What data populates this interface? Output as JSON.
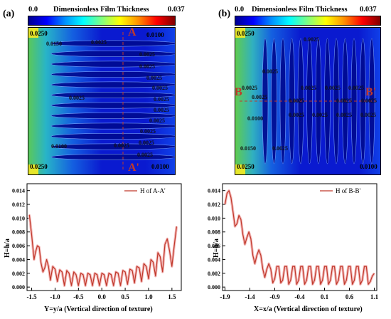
{
  "panels": [
    {
      "label": "(a)",
      "colorbar": {
        "min": "0.0",
        "title": "Dimensionless Film Thickness",
        "max": "0.037"
      },
      "contour_labels": [
        "0.0250",
        "0.0150",
        "0.0025",
        "0.0100",
        "0.0025",
        "0.0025",
        "0.0025",
        "0.0025",
        "0.0025",
        "0.0025",
        "0.0025",
        "0.0025",
        "0.0025",
        "0.0025",
        "0.0025",
        "0.0100",
        "0.0025",
        "0.0250",
        "0.0100"
      ],
      "section_marks": [
        "A",
        "A'"
      ]
    },
    {
      "label": "(b)",
      "colorbar": {
        "min": "0.0",
        "title": "Dimensionless Film Thickness",
        "max": "0.037"
      },
      "contour_labels": [
        "0.0250",
        "0.0025",
        "0.0025",
        "0.0025",
        "0.0025",
        "0.0025",
        "0.0025",
        "0.0100",
        "0.0025",
        "0.0025",
        "0.0025",
        "0.0025",
        "0.0025",
        "0.0150",
        "0.0025",
        "0.0250",
        "0.0100",
        "0.0025",
        "0.0025",
        "0.0025"
      ],
      "section_marks": [
        "B",
        "B'"
      ]
    }
  ],
  "chart_data": [
    {
      "type": "line",
      "title": "",
      "xlabel": "Y=y/a (Vertical direction of texture)",
      "ylabel": "H=h/a",
      "xlim": [
        -1.6,
        1.7
      ],
      "ylim": [
        -0.0005,
        0.015
      ],
      "xticks": [
        "-1.5",
        "-1.0",
        "-0.5",
        "0.0",
        "0.5",
        "1.0",
        "1.5"
      ],
      "xtick_values": [
        -1.5,
        -1.0,
        -0.5,
        0.0,
        0.5,
        1.0,
        1.5
      ],
      "yticks": [
        "0.000",
        "0.002",
        "0.004",
        "0.006",
        "0.008",
        "0.010",
        "0.012",
        "0.014"
      ],
      "ytick_values": [
        0,
        0.002,
        0.004,
        0.006,
        0.008,
        0.01,
        0.012,
        0.014
      ],
      "legend": "top-right",
      "series": [
        {
          "name": "H of A-A'",
          "color": "#c0392b",
          "x": [
            -1.55,
            -1.5,
            -1.45,
            -1.42,
            -1.38,
            -1.34,
            -1.3,
            -1.26,
            -1.22,
            -1.18,
            -1.14,
            -1.1,
            -1.05,
            -1.0,
            -0.95,
            -0.9,
            -0.85,
            -0.8,
            -0.75,
            -0.7,
            -0.65,
            -0.6,
            -0.55,
            -0.5,
            -0.45,
            -0.4,
            -0.35,
            -0.3,
            -0.25,
            -0.2,
            -0.15,
            -0.1,
            -0.05,
            0.0,
            0.05,
            0.1,
            0.15,
            0.2,
            0.25,
            0.3,
            0.35,
            0.4,
            0.45,
            0.5,
            0.55,
            0.6,
            0.65,
            0.7,
            0.75,
            0.8,
            0.85,
            0.9,
            0.95,
            1.0,
            1.05,
            1.1,
            1.15,
            1.2,
            1.25,
            1.3,
            1.35,
            1.4,
            1.45,
            1.5,
            1.55,
            1.6
          ],
          "y": [
            0.0105,
            0.0075,
            0.004,
            0.005,
            0.006,
            0.0058,
            0.0035,
            0.0022,
            0.0028,
            0.004,
            0.003,
            0.001,
            0.003,
            0.0026,
            0.0008,
            0.0025,
            0.0022,
            0.0002,
            0.0024,
            0.002,
            0.0002,
            0.0022,
            0.0018,
            0.0002,
            0.002,
            0.0018,
            0.0002,
            0.002,
            0.0018,
            0.0002,
            0.002,
            0.0018,
            0.0002,
            0.002,
            0.0018,
            0.0002,
            0.002,
            0.0018,
            0.0002,
            0.0022,
            0.002,
            0.0002,
            0.0024,
            0.0022,
            0.0004,
            0.0026,
            0.0024,
            0.0006,
            0.003,
            0.0028,
            0.0008,
            0.0034,
            0.003,
            0.0012,
            0.004,
            0.0036,
            0.0016,
            0.005,
            0.0044,
            0.0022,
            0.0062,
            0.007,
            0.0052,
            0.003,
            0.006,
            0.0088
          ]
        }
      ]
    },
    {
      "type": "line",
      "title": "",
      "xlabel": "X=x/a (Vertical direction of texture)",
      "ylabel": "H=h/a",
      "xlim": [
        -1.95,
        1.15
      ],
      "ylim": [
        -0.0005,
        0.015
      ],
      "xticks": [
        "-1.9",
        "-1.4",
        "-0.9",
        "-0.4",
        "0.1",
        "0.6",
        "1.1"
      ],
      "xtick_values": [
        -1.9,
        -1.4,
        -0.9,
        -0.4,
        0.1,
        0.6,
        1.1
      ],
      "yticks": [
        "0.000",
        "0.002",
        "0.004",
        "0.006",
        "0.008",
        "0.010",
        "0.012",
        "0.014"
      ],
      "ytick_values": [
        0,
        0.002,
        0.004,
        0.006,
        0.008,
        0.01,
        0.012,
        0.014
      ],
      "legend": "top-right",
      "series": [
        {
          "name": "H of B-B'",
          "color": "#c0392b",
          "x": [
            -1.9,
            -1.86,
            -1.82,
            -1.78,
            -1.74,
            -1.7,
            -1.66,
            -1.62,
            -1.58,
            -1.54,
            -1.5,
            -1.46,
            -1.42,
            -1.38,
            -1.34,
            -1.3,
            -1.26,
            -1.22,
            -1.18,
            -1.14,
            -1.1,
            -1.06,
            -1.02,
            -0.98,
            -0.94,
            -0.9,
            -0.86,
            -0.82,
            -0.78,
            -0.74,
            -0.7,
            -0.66,
            -0.62,
            -0.58,
            -0.54,
            -0.5,
            -0.46,
            -0.42,
            -0.38,
            -0.34,
            -0.3,
            -0.26,
            -0.22,
            -0.18,
            -0.14,
            -0.1,
            -0.06,
            -0.02,
            0.02,
            0.06,
            0.1,
            0.14,
            0.18,
            0.22,
            0.26,
            0.3,
            0.34,
            0.38,
            0.42,
            0.46,
            0.5,
            0.54,
            0.58,
            0.62,
            0.66,
            0.7,
            0.74,
            0.78,
            0.82,
            0.86,
            0.9,
            0.94,
            0.98,
            1.02,
            1.06,
            1.1
          ],
          "y": [
            0.012,
            0.0136,
            0.014,
            0.013,
            0.011,
            0.0088,
            0.0092,
            0.0104,
            0.0098,
            0.0076,
            0.0062,
            0.0072,
            0.008,
            0.007,
            0.0046,
            0.0034,
            0.0046,
            0.0054,
            0.0046,
            0.0026,
            0.0014,
            0.0026,
            0.0034,
            0.0026,
            0.0006,
            0.0012,
            0.003,
            0.003,
            0.0006,
            0.001,
            0.003,
            0.003,
            0.0004,
            0.001,
            0.003,
            0.003,
            0.0004,
            0.001,
            0.003,
            0.003,
            0.0004,
            0.001,
            0.003,
            0.003,
            0.0004,
            0.001,
            0.003,
            0.003,
            0.0004,
            0.001,
            0.003,
            0.003,
            0.0004,
            0.001,
            0.003,
            0.003,
            0.0004,
            0.001,
            0.003,
            0.003,
            0.0004,
            0.001,
            0.003,
            0.003,
            0.0004,
            0.001,
            0.003,
            0.003,
            0.0004,
            0.001,
            0.003,
            0.003,
            0.0004,
            0.0008,
            0.0016,
            0.002
          ]
        }
      ]
    }
  ]
}
